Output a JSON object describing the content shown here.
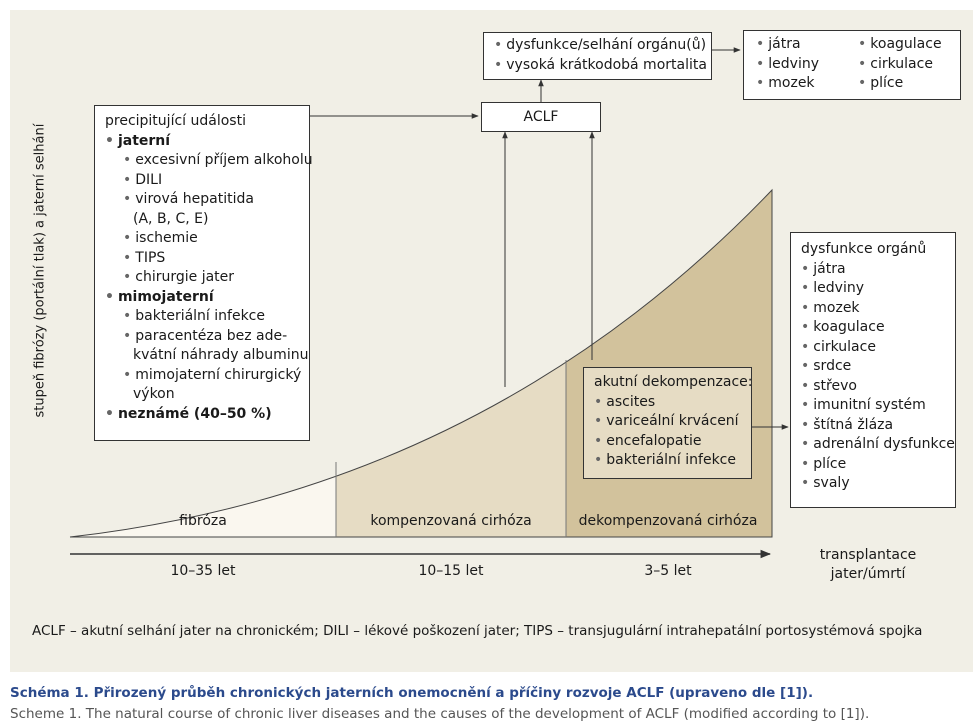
{
  "colors": {
    "panel": "#f1efe6",
    "fibrosis_fill": "#faf7ef",
    "compensated_fill": "#e6dcc4",
    "decompensated_fill": "#d2c29c",
    "caption_blue": "#2b4a8c"
  },
  "y_axis_label": "stupeň fibrózy (portální tlak) a jaterní selhání",
  "stages": [
    {
      "name": "fibróza",
      "duration": "10–35 let"
    },
    {
      "name": "kompenzovaná cirhóza",
      "duration": "10–15 let"
    },
    {
      "name": "dekompenzovaná cirhóza",
      "duration": "3–5 let"
    }
  ],
  "endpoint": {
    "line1": "transplantace",
    "line2": "jater/úmrtí"
  },
  "precipitating": {
    "title": "precipitující události",
    "hepatic": {
      "label": "jaterní",
      "items": [
        "excesivní příjem alkoholu",
        "DILI",
        "virová hepatitida",
        "(A, B, C, E)",
        "ischemie",
        "TIPS",
        "chirurgie jater"
      ]
    },
    "extrahepatic": {
      "label": "mimojaterní",
      "items": [
        "bakteriální infekce",
        "paracentéza bez ade-",
        "kvátní náhrady albuminu",
        "mimojaterní chirurgický",
        "výkon"
      ]
    },
    "unknown": "neznámé (40–50 %)"
  },
  "aclf": {
    "label": "ACLF"
  },
  "aclf_outcome": [
    "dysfunkce/selhání orgánu(ů)",
    "vysoká krátkodobá mortalita"
  ],
  "aclf_organs": {
    "col1": [
      "játra",
      "ledviny",
      "mozek"
    ],
    "col2": [
      "koagulace",
      "cirkulace",
      "plíce"
    ]
  },
  "acute_decomp": {
    "title": "akutní dekompenzace:",
    "items": [
      "ascites",
      "variceální krvácení",
      "encefalopatie",
      "bakteriální infekce"
    ]
  },
  "organ_dysfunction": {
    "title": "dysfunkce orgánů",
    "items": [
      "játra",
      "ledviny",
      "mozek",
      "koagulace",
      "cirkulace",
      "srdce",
      "střevo",
      "imunitní systém",
      "štítná žláza",
      "adrenální dysfunkce",
      "plíce",
      "svaly"
    ]
  },
  "footnote": "ACLF – akutní selhání jater na chronickém; DILI – lékové poškození jater; TIPS – transjugulární intrahepatální portosystémová spojka",
  "caption_cz": "Schéma 1. Přirozený průběh chronických jaterních onemocnění a příčiny rozvoje ACLF (upraveno dle [1]).",
  "caption_en": "Scheme 1. The natural course of chronic liver diseases and the causes of the development of ACLF (modified according to [1])."
}
